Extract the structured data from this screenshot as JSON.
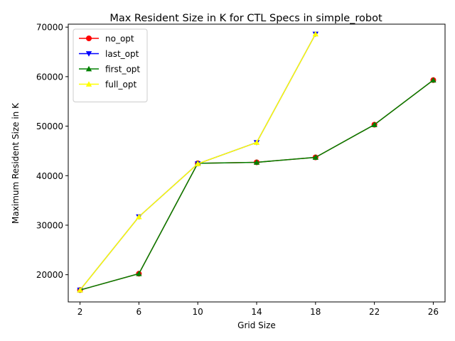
{
  "chart_data": {
    "type": "line",
    "title": "Max Resident Size in K for CTL Specs in simple_robot",
    "xlabel": "Grid Size",
    "ylabel": "Maximum Resident Size in K",
    "xlim": [
      1.2,
      26.8
    ],
    "ylim": [
      14500,
      70600
    ],
    "xticks": [
      2,
      6,
      10,
      14,
      18,
      22,
      26
    ],
    "yticks": [
      20000,
      30000,
      40000,
      50000,
      60000,
      70000
    ],
    "grid": false,
    "legend_position": "top-left",
    "series": [
      {
        "name": "no_opt",
        "color": "#ff0000",
        "marker": "circle",
        "x": [
          2,
          6,
          10,
          14,
          18,
          22,
          26
        ],
        "y": [
          16900,
          20200,
          42500,
          42700,
          43700,
          50300,
          59300
        ]
      },
      {
        "name": "last_opt",
        "color": "#0000ff",
        "marker": "triangle-down",
        "x": [
          2,
          6,
          10,
          14,
          18
        ],
        "y": [
          16900,
          31700,
          42400,
          46700,
          68600
        ]
      },
      {
        "name": "first_opt",
        "color": "#008000",
        "marker": "triangle-up",
        "x": [
          2,
          6,
          10,
          14,
          18,
          22,
          26
        ],
        "y": [
          16900,
          20200,
          42500,
          42700,
          43700,
          50300,
          59300
        ]
      },
      {
        "name": "full_opt",
        "color": "#ffff00",
        "marker": "triangle-up",
        "x": [
          2,
          6,
          10,
          14,
          18
        ],
        "y": [
          16900,
          31700,
          42400,
          46700,
          68600
        ]
      }
    ]
  }
}
